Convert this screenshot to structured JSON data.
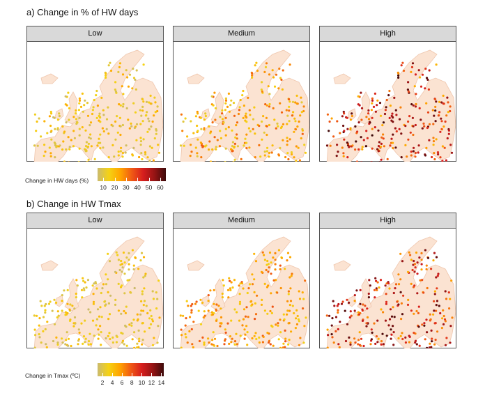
{
  "sections": [
    {
      "title": "a) Change in % of HW days",
      "panels": [
        "Low",
        "Medium",
        "High"
      ],
      "legend": {
        "label": "Change in HW days (%)",
        "ticks": [
          "10",
          "20",
          "30",
          "40",
          "50",
          "60"
        ],
        "tick_values": [
          10,
          20,
          30,
          40,
          50,
          60
        ],
        "range": [
          5,
          65
        ]
      }
    },
    {
      "title": "b) Change in HW Tmax",
      "panels": [
        "Low",
        "Medium",
        "High"
      ],
      "legend": {
        "label": "Change in Tmax (ºC)",
        "ticks": [
          "2",
          "4",
          "6",
          "8",
          "10",
          "12",
          "14"
        ],
        "tick_values": [
          2,
          4,
          6,
          8,
          10,
          12,
          14
        ],
        "range": [
          1,
          14.5
        ]
      }
    }
  ],
  "colors": {
    "land": "#fbe3d2",
    "land_edge": "#efc6ad",
    "scale": [
      "#cbbb6e",
      "#f5d214",
      "#ffa500",
      "#f05a14",
      "#d71e1e",
      "#961414",
      "#3c0a0a"
    ]
  },
  "chart_data": [
    {
      "type": "scatter",
      "title": "a) Change in % of HW days",
      "panels": [
        {
          "name": "Low",
          "typical_value_range": [
            5,
            25
          ]
        },
        {
          "name": "Medium",
          "typical_value_range": [
            10,
            35
          ]
        },
        {
          "name": "High",
          "typical_value_range": [
            20,
            65
          ]
        }
      ],
      "colorbar_label": "Change in HW days (%)",
      "colorbar_range": [
        5,
        65
      ]
    },
    {
      "type": "scatter",
      "title": "b) Change in HW Tmax",
      "panels": [
        {
          "name": "Low",
          "typical_value_range": [
            1,
            5
          ]
        },
        {
          "name": "Medium",
          "typical_value_range": [
            3,
            8
          ]
        },
        {
          "name": "High",
          "typical_value_range": [
            5,
            14
          ]
        }
      ],
      "colorbar_label": "Change in Tmax (ºC)",
      "colorbar_range": [
        1,
        14.5
      ]
    }
  ]
}
